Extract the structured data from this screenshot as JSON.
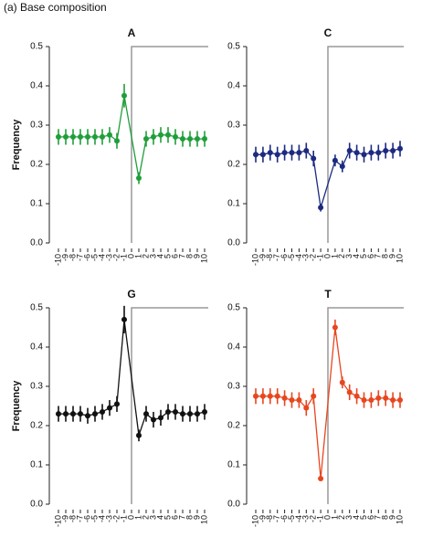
{
  "heading": "(a) Base composition",
  "chart_data": [
    {
      "type": "line",
      "title": "A",
      "ylabel": "Frequency",
      "color": "#1f9e3a",
      "x": [
        -10,
        -9,
        -8,
        -7,
        -6,
        -5,
        -4,
        -3,
        -2,
        -1,
        1,
        2,
        3,
        4,
        5,
        6,
        7,
        8,
        9,
        10
      ],
      "values": [
        0.27,
        0.27,
        0.27,
        0.27,
        0.27,
        0.27,
        0.27,
        0.275,
        0.26,
        0.375,
        0.165,
        0.265,
        0.27,
        0.275,
        0.275,
        0.27,
        0.265,
        0.265,
        0.265,
        0.265
      ],
      "errors": [
        0.02,
        0.02,
        0.02,
        0.02,
        0.02,
        0.02,
        0.02,
        0.02,
        0.02,
        0.03,
        0.015,
        0.02,
        0.02,
        0.02,
        0.02,
        0.02,
        0.02,
        0.02,
        0.02,
        0.02
      ],
      "xlim": [
        -10,
        10
      ],
      "xticks": [
        -10,
        -9,
        -8,
        -7,
        -6,
        -5,
        -4,
        -3,
        -2,
        -1,
        0,
        1,
        2,
        3,
        4,
        5,
        6,
        7,
        8,
        9,
        10
      ],
      "ylim": [
        0,
        0.5
      ],
      "yticks": [
        {
          "value": 0,
          "label": "0.0"
        },
        0.1,
        0.2,
        0.3,
        0.4,
        0.5
      ]
    },
    {
      "type": "line",
      "title": "C",
      "color": "#1c2a80",
      "x": [
        -10,
        -9,
        -8,
        -7,
        -6,
        -5,
        -4,
        -3,
        -2,
        -1,
        1,
        2,
        3,
        4,
        5,
        6,
        7,
        8,
        9,
        10
      ],
      "values": [
        0.225,
        0.225,
        0.23,
        0.225,
        0.23,
        0.23,
        0.23,
        0.235,
        0.215,
        0.09,
        0.21,
        0.195,
        0.235,
        0.23,
        0.225,
        0.23,
        0.23,
        0.235,
        0.235,
        0.24
      ],
      "errors": [
        0.02,
        0.02,
        0.02,
        0.02,
        0.02,
        0.02,
        0.02,
        0.02,
        0.02,
        0.01,
        0.015,
        0.015,
        0.02,
        0.02,
        0.02,
        0.02,
        0.02,
        0.02,
        0.02,
        0.02
      ],
      "xlim": [
        -10,
        10
      ],
      "xticks": [
        -10,
        -9,
        -8,
        -7,
        -6,
        -5,
        -4,
        -3,
        -2,
        -1,
        0,
        1,
        2,
        3,
        4,
        5,
        6,
        7,
        8,
        9,
        10
      ],
      "ylim": [
        0,
        0.5
      ],
      "yticks": [
        {
          "value": 0,
          "label": "0.0"
        },
        0.1,
        0.2,
        0.3,
        0.4,
        0.5
      ]
    },
    {
      "type": "line",
      "title": "G",
      "ylabel": "Frequency",
      "color": "#111111",
      "x": [
        -10,
        -9,
        -8,
        -7,
        -6,
        -5,
        -4,
        -3,
        -2,
        -1,
        1,
        2,
        3,
        4,
        5,
        6,
        7,
        8,
        9,
        10
      ],
      "values": [
        0.23,
        0.23,
        0.23,
        0.23,
        0.225,
        0.23,
        0.235,
        0.245,
        0.255,
        0.47,
        0.175,
        0.23,
        0.215,
        0.22,
        0.235,
        0.235,
        0.23,
        0.23,
        0.23,
        0.235
      ],
      "errors": [
        0.02,
        0.02,
        0.02,
        0.02,
        0.02,
        0.02,
        0.02,
        0.02,
        0.02,
        0.035,
        0.015,
        0.02,
        0.02,
        0.02,
        0.02,
        0.02,
        0.02,
        0.02,
        0.02,
        0.02
      ],
      "xlim": [
        -10,
        10
      ],
      "xticks": [
        -10,
        -9,
        -8,
        -7,
        -6,
        -5,
        -4,
        -3,
        -2,
        -1,
        0,
        1,
        2,
        3,
        4,
        5,
        6,
        7,
        8,
        9,
        10
      ],
      "ylim": [
        0,
        0.5
      ],
      "yticks": [
        {
          "value": 0,
          "label": "0.0"
        },
        0.1,
        0.2,
        0.3,
        0.4,
        0.5
      ]
    },
    {
      "type": "line",
      "title": "T",
      "color": "#e8461e",
      "x": [
        -10,
        -9,
        -8,
        -7,
        -6,
        -5,
        -4,
        -3,
        -2,
        -1,
        1,
        2,
        3,
        4,
        5,
        6,
        7,
        8,
        9,
        10
      ],
      "values": [
        0.275,
        0.275,
        0.275,
        0.275,
        0.27,
        0.265,
        0.265,
        0.245,
        0.275,
        0.065,
        0.45,
        0.31,
        0.285,
        0.275,
        0.265,
        0.265,
        0.27,
        0.27,
        0.265,
        0.265
      ],
      "errors": [
        0.02,
        0.02,
        0.02,
        0.02,
        0.02,
        0.02,
        0.02,
        0.02,
        0.02,
        0.005,
        0.02,
        0.015,
        0.02,
        0.02,
        0.02,
        0.02,
        0.02,
        0.02,
        0.02,
        0.02
      ],
      "xlim": [
        -10,
        10
      ],
      "xticks": [
        -10,
        -9,
        -8,
        -7,
        -6,
        -5,
        -4,
        -3,
        -2,
        -1,
        0,
        1,
        2,
        3,
        4,
        5,
        6,
        7,
        8,
        9,
        10
      ],
      "ylim": [
        0,
        0.5
      ],
      "yticks": [
        {
          "value": 0,
          "label": "0.0"
        },
        0.1,
        0.2,
        0.3,
        0.4,
        0.5
      ]
    }
  ]
}
